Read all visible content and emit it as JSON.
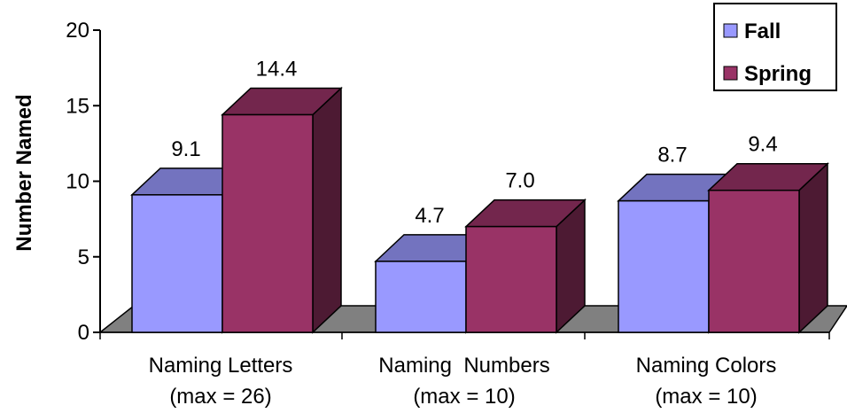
{
  "chart_data": {
    "type": "bar",
    "title": "",
    "xlabel": "",
    "ylabel": "Number Named",
    "ylim": [
      0,
      20
    ],
    "yticks": [
      0,
      5,
      10,
      15,
      20
    ],
    "grid": false,
    "three_d": true,
    "legend_position": "top-right",
    "categories": [
      [
        "Naming Letters",
        "(max = 26)"
      ],
      [
        "Naming  Numbers",
        "(max = 10)"
      ],
      [
        "Naming Colors",
        "(max = 10)"
      ]
    ],
    "series": [
      {
        "name": "Fall",
        "values": [
          9.1,
          4.7,
          8.7
        ],
        "labels": [
          "9.1",
          "4.7",
          "8.7"
        ],
        "color": "#9999ff"
      },
      {
        "name": "Spring",
        "values": [
          14.4,
          7.0,
          9.4
        ],
        "labels": [
          "14.4",
          "7.0",
          "9.4"
        ],
        "color": "#993366"
      }
    ],
    "floor_color": "#808080"
  }
}
